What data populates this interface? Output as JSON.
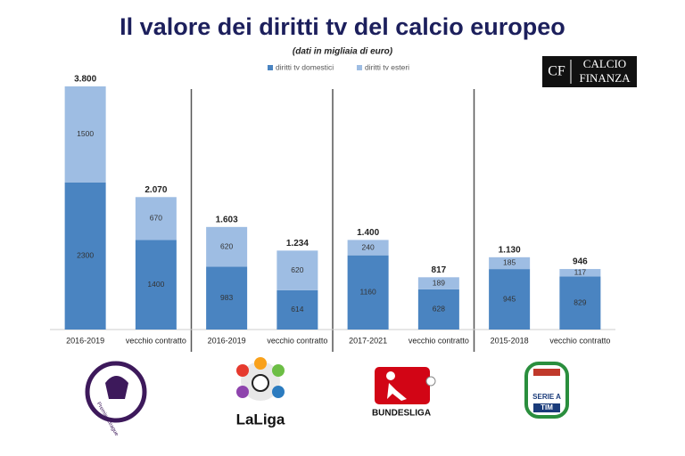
{
  "chart_data": {
    "type": "stacked_bar",
    "title": "Il valore dei diritti tv del calcio europeo",
    "subtitle": "(dati in migliaia di euro)",
    "brand": [
      "CF",
      "CALCIO",
      "FINANZA"
    ],
    "categories": [
      "2016-2019",
      "vecchio contratto",
      "2016-2019",
      "vecchio contratto",
      "2017-2021",
      "vecchio contratto",
      "2015-2018",
      "vecchio contratto"
    ],
    "series": [
      {
        "name": "diritti tv domestici",
        "color": "#4a84c1",
        "values": [
          2300,
          1400,
          983,
          614,
          1160,
          628,
          945,
          829
        ]
      },
      {
        "name": "diritti tv esteri",
        "color": "#9ebde3",
        "values": [
          1500,
          670,
          620,
          620,
          240,
          189,
          185,
          117
        ]
      }
    ],
    "totals": {
      "values": [
        3800,
        2070,
        1603,
        1234,
        1400,
        817,
        1130,
        946
      ],
      "value_labels": [
        "3.800",
        "2.070",
        "1.603",
        "1.234",
        "1.400",
        "817",
        "1.130",
        "946"
      ]
    },
    "ylim": [
      0,
      3800
    ],
    "legend": "top",
    "logos": [
      "Premier League",
      "LaLiga",
      "BUNDESLIGA",
      "SERIE A",
      "TIM"
    ]
  }
}
